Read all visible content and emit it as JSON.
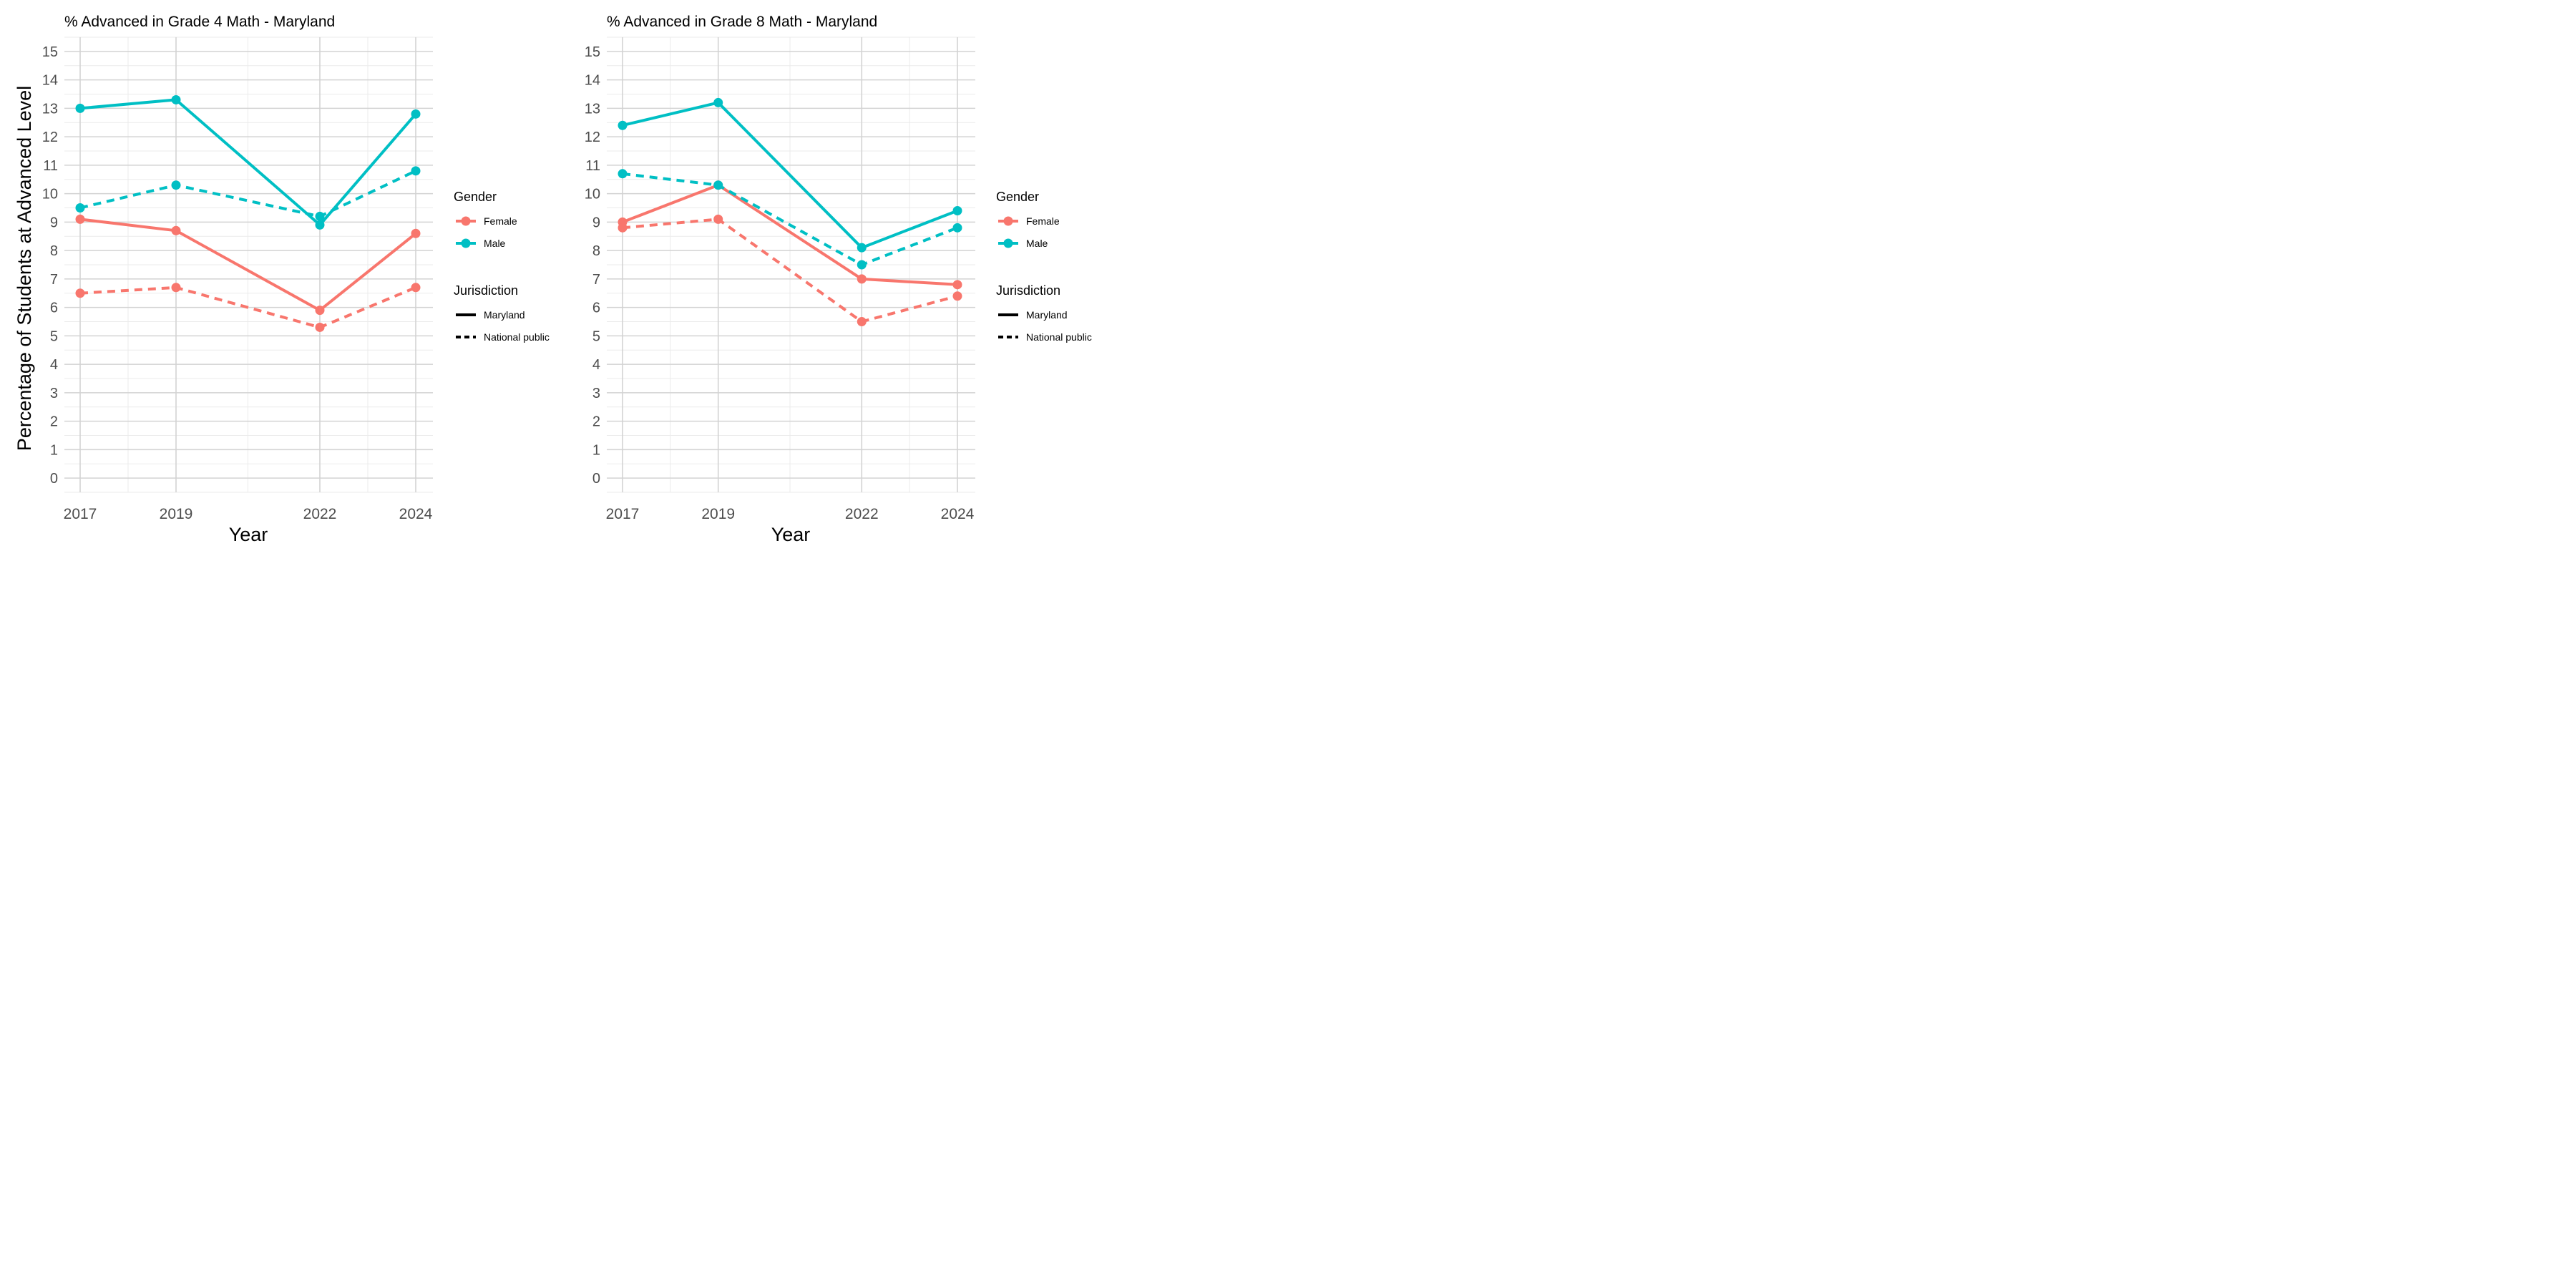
{
  "figure": {
    "ylabel": "Percentage of Students at Advanced Level"
  },
  "chart_data": [
    {
      "type": "line",
      "title": "% Advanced in Grade 4 Math - Maryland",
      "xlabel": "Year",
      "ylabel": "Percentage of Students at Advanced Level",
      "x": [
        2017,
        2019,
        2022,
        2024
      ],
      "ylim": [
        -0.5,
        15.5
      ],
      "yticks": [
        0,
        1,
        2,
        3,
        4,
        5,
        6,
        7,
        8,
        9,
        10,
        11,
        12,
        13,
        14,
        15
      ],
      "grid": true,
      "series": [
        {
          "gender": "Female",
          "jurisdiction": "Maryland",
          "color": "#F8766D",
          "dash": "solid",
          "values": [
            9.1,
            8.7,
            5.9,
            8.6
          ]
        },
        {
          "gender": "Female",
          "jurisdiction": "National public",
          "color": "#F8766D",
          "dash": "dashed",
          "values": [
            6.5,
            6.7,
            5.3,
            6.7
          ]
        },
        {
          "gender": "Male",
          "jurisdiction": "Maryland",
          "color": "#00BFC4",
          "dash": "solid",
          "values": [
            13.0,
            13.3,
            8.9,
            12.8
          ]
        },
        {
          "gender": "Male",
          "jurisdiction": "National public",
          "color": "#00BFC4",
          "dash": "dashed",
          "values": [
            9.5,
            10.3,
            9.2,
            10.8
          ]
        }
      ]
    },
    {
      "type": "line",
      "title": "% Advanced in Grade 8 Math - Maryland",
      "xlabel": "Year",
      "ylabel": "",
      "x": [
        2017,
        2019,
        2022,
        2024
      ],
      "ylim": [
        -0.5,
        15.5
      ],
      "yticks": [
        0,
        1,
        2,
        3,
        4,
        5,
        6,
        7,
        8,
        9,
        10,
        11,
        12,
        13,
        14,
        15
      ],
      "grid": true,
      "series": [
        {
          "gender": "Female",
          "jurisdiction": "Maryland",
          "color": "#F8766D",
          "dash": "solid",
          "values": [
            9.0,
            10.3,
            7.0,
            6.8
          ]
        },
        {
          "gender": "Female",
          "jurisdiction": "National public",
          "color": "#F8766D",
          "dash": "dashed",
          "values": [
            8.8,
            9.1,
            5.5,
            6.4
          ]
        },
        {
          "gender": "Male",
          "jurisdiction": "Maryland",
          "color": "#00BFC4",
          "dash": "solid",
          "values": [
            12.4,
            13.2,
            8.1,
            9.4
          ]
        },
        {
          "gender": "Male",
          "jurisdiction": "National public",
          "color": "#00BFC4",
          "dash": "dashed",
          "values": [
            10.7,
            10.3,
            7.5,
            8.8
          ]
        }
      ]
    }
  ],
  "legends": [
    {
      "gender_title": "Gender",
      "gender_items": [
        {
          "label": "Female",
          "color": "#F8766D"
        },
        {
          "label": "Male",
          "color": "#00BFC4"
        }
      ],
      "jurisdiction_title": "Jurisdiction",
      "jurisdiction_items": [
        {
          "label": "Maryland",
          "dash": "solid"
        },
        {
          "label": "National public",
          "dash": "dashed"
        }
      ]
    },
    {
      "gender_title": "Gender",
      "gender_items": [
        {
          "label": "Female",
          "color": "#F8766D"
        },
        {
          "label": "Male",
          "color": "#00BFC4"
        }
      ],
      "jurisdiction_title": "Jurisdiction",
      "jurisdiction_items": [
        {
          "label": "Maryland",
          "dash": "solid"
        },
        {
          "label": "National public",
          "dash": "dashed"
        }
      ]
    }
  ]
}
